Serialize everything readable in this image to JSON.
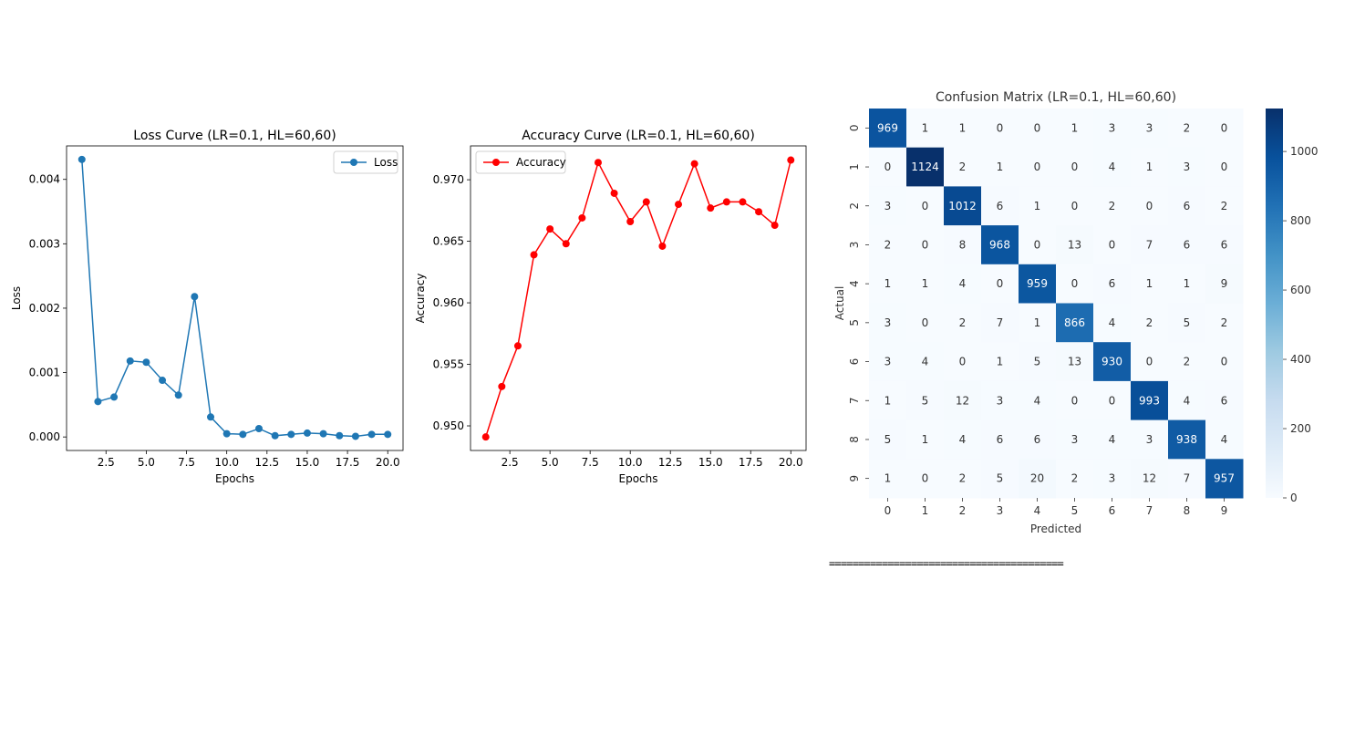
{
  "chart_data": [
    {
      "type": "line",
      "title": "Loss Curve (LR=0.1, HL=60,60)",
      "xlabel": "Epochs",
      "ylabel": "Loss",
      "x": [
        1,
        2,
        3,
        4,
        5,
        6,
        7,
        8,
        9,
        10,
        11,
        12,
        13,
        14,
        15,
        16,
        17,
        18,
        19,
        20
      ],
      "series": [
        {
          "name": "Loss",
          "color": "#1f77b4",
          "values": [
            0.00431,
            0.00055,
            0.00062,
            0.00118,
            0.00116,
            0.00088,
            0.00065,
            0.00218,
            0.00031,
            5e-05,
            4e-05,
            0.00013,
            2e-05,
            4e-05,
            6e-05,
            5e-05,
            2e-05,
            1e-05,
            4e-05,
            4e-05
          ]
        }
      ],
      "xlim": [
        0.05,
        20.95
      ],
      "ylim": [
        -0.00021,
        0.00452
      ],
      "xticks": [
        2.5,
        5.0,
        7.5,
        10.0,
        12.5,
        15.0,
        17.5,
        20.0
      ],
      "xtick_labels": [
        "2.5",
        "5.0",
        "7.5",
        "10.0",
        "12.5",
        "15.0",
        "17.5",
        "20.0"
      ],
      "yticks": [
        0.0,
        0.001,
        0.002,
        0.003,
        0.004
      ],
      "ytick_labels": [
        "0.000",
        "0.001",
        "0.002",
        "0.003",
        "0.004"
      ],
      "legend": "top-right",
      "grid": false
    },
    {
      "type": "line",
      "title": "Accuracy Curve (LR=0.1, HL=60,60)",
      "xlabel": "Epochs",
      "ylabel": "Accuracy",
      "x": [
        1,
        2,
        3,
        4,
        5,
        6,
        7,
        8,
        9,
        10,
        11,
        12,
        13,
        14,
        15,
        16,
        17,
        18,
        19,
        20
      ],
      "series": [
        {
          "name": "Accuracy",
          "color": "#ff0000",
          "values": [
            0.9491,
            0.9532,
            0.9565,
            0.9639,
            0.966,
            0.9648,
            0.9669,
            0.9714,
            0.9689,
            0.9666,
            0.9682,
            0.9646,
            0.968,
            0.9713,
            0.9677,
            0.9682,
            0.9682,
            0.9674,
            0.9663,
            0.9716
          ]
        }
      ],
      "xlim": [
        0.05,
        20.95
      ],
      "ylim": [
        0.948,
        0.97275
      ],
      "xticks": [
        2.5,
        5.0,
        7.5,
        10.0,
        12.5,
        15.0,
        17.5,
        20.0
      ],
      "xtick_labels": [
        "2.5",
        "5.0",
        "7.5",
        "10.0",
        "12.5",
        "15.0",
        "17.5",
        "20.0"
      ],
      "yticks": [
        0.95,
        0.955,
        0.96,
        0.965,
        0.97
      ],
      "ytick_labels": [
        "0.950",
        "0.955",
        "0.960",
        "0.965",
        "0.970"
      ],
      "legend": "top-left",
      "grid": false
    },
    {
      "type": "heatmap",
      "title": "Confusion Matrix (LR=0.1, HL=60,60)",
      "xlabel": "Predicted",
      "ylabel": "Actual",
      "categories": [
        "0",
        "1",
        "2",
        "3",
        "4",
        "5",
        "6",
        "7",
        "8",
        "9"
      ],
      "values": [
        [
          969,
          1,
          1,
          0,
          0,
          1,
          3,
          3,
          2,
          0
        ],
        [
          0,
          1124,
          2,
          1,
          0,
          0,
          4,
          1,
          3,
          0
        ],
        [
          3,
          0,
          1012,
          6,
          1,
          0,
          2,
          0,
          6,
          2
        ],
        [
          2,
          0,
          8,
          968,
          0,
          13,
          0,
          7,
          6,
          6
        ],
        [
          1,
          1,
          4,
          0,
          959,
          0,
          6,
          1,
          1,
          9
        ],
        [
          3,
          0,
          2,
          7,
          1,
          866,
          4,
          2,
          5,
          2
        ],
        [
          3,
          4,
          0,
          1,
          5,
          13,
          930,
          0,
          2,
          0
        ],
        [
          1,
          5,
          12,
          3,
          4,
          0,
          0,
          993,
          4,
          6
        ],
        [
          5,
          1,
          4,
          6,
          6,
          3,
          4,
          3,
          938,
          4
        ],
        [
          1,
          0,
          2,
          5,
          20,
          2,
          3,
          12,
          7,
          957
        ]
      ],
      "colormap": "Blues",
      "colorbar_range": [
        0,
        1124
      ],
      "colorbar_ticks": [
        0,
        200,
        400,
        600,
        800,
        1000
      ],
      "colorbar_tick_labels": [
        "0",
        "200",
        "400",
        "600",
        "800",
        "1000"
      ]
    }
  ],
  "separator_text": "========================================"
}
